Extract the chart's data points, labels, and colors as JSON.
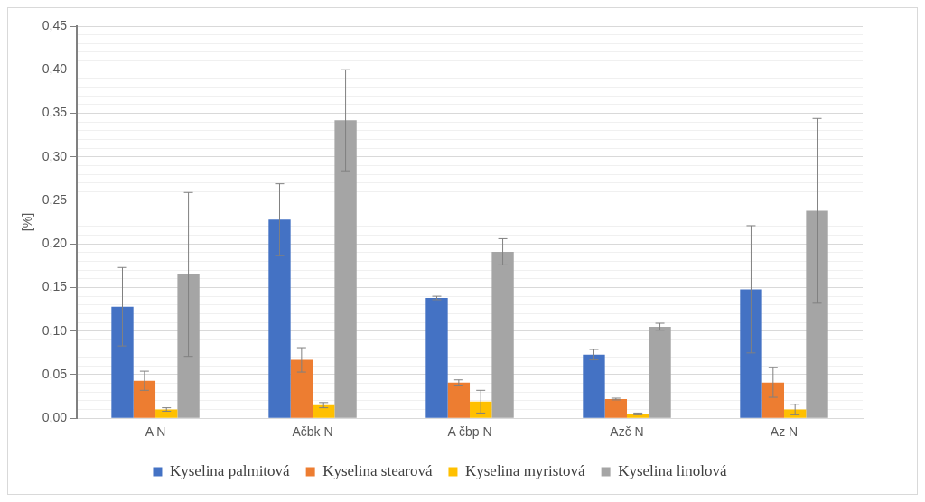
{
  "chart_data": {
    "type": "bar",
    "ylabel": "[%]",
    "categories": [
      "A N",
      "Ačbk N",
      "A čbp N",
      "Azč N",
      "Az N"
    ],
    "series": [
      {
        "name": "Kyselina palmitová",
        "color": "#4472c4",
        "values": [
          0.128,
          0.228,
          0.138,
          0.073,
          0.148
        ],
        "errors": [
          0.045,
          0.041,
          0.002,
          0.006,
          0.073
        ]
      },
      {
        "name": "Kyselina stearová",
        "color": "#ed7d31",
        "values": [
          0.043,
          0.067,
          0.041,
          0.022,
          0.041
        ],
        "errors": [
          0.011,
          0.014,
          0.003,
          0.001,
          0.017
        ]
      },
      {
        "name": "Kyselina myristová",
        "color": "#ffc000",
        "values": [
          0.01,
          0.015,
          0.019,
          0.005,
          0.01
        ],
        "errors": [
          0.002,
          0.003,
          0.013,
          0.001,
          0.006
        ]
      },
      {
        "name": "Kyselina linolová",
        "color": "#a5a5a5",
        "values": [
          0.165,
          0.342,
          0.191,
          0.105,
          0.238
        ],
        "errors": [
          0.094,
          0.058,
          0.015,
          0.004,
          0.106
        ]
      }
    ],
    "ylim": [
      0,
      0.45
    ],
    "yticks": [
      {
        "value": 0,
        "label": "0,00"
      },
      {
        "value": 0.01,
        "label": null
      },
      {
        "value": 0.02,
        "label": null
      },
      {
        "value": 0.03,
        "label": null
      },
      {
        "value": 0.04,
        "label": null
      },
      {
        "value": 0.05,
        "label": "0,05"
      },
      {
        "value": 0.06,
        "label": null
      },
      {
        "value": 0.07,
        "label": null
      },
      {
        "value": 0.08,
        "label": null
      },
      {
        "value": 0.09,
        "label": null
      },
      {
        "value": 0.1,
        "label": "0,10"
      },
      {
        "value": 0.11,
        "label": null
      },
      {
        "value": 0.12,
        "label": null
      },
      {
        "value": 0.13,
        "label": null
      },
      {
        "value": 0.14,
        "label": null
      },
      {
        "value": 0.15,
        "label": "0,15"
      },
      {
        "value": 0.16,
        "label": null
      },
      {
        "value": 0.17,
        "label": null
      },
      {
        "value": 0.18,
        "label": null
      },
      {
        "value": 0.19,
        "label": null
      },
      {
        "value": 0.2,
        "label": "0,20"
      },
      {
        "value": 0.21,
        "label": null
      },
      {
        "value": 0.22,
        "label": null
      },
      {
        "value": 0.23,
        "label": null
      },
      {
        "value": 0.24,
        "label": null
      },
      {
        "value": 0.25,
        "label": "0,25"
      },
      {
        "value": 0.26,
        "label": null
      },
      {
        "value": 0.27,
        "label": null
      },
      {
        "value": 0.28,
        "label": null
      },
      {
        "value": 0.29,
        "label": null
      },
      {
        "value": 0.3,
        "label": "0,30"
      },
      {
        "value": 0.31,
        "label": null
      },
      {
        "value": 0.32,
        "label": null
      },
      {
        "value": 0.33,
        "label": null
      },
      {
        "value": 0.34,
        "label": null
      },
      {
        "value": 0.35,
        "label": "0,35"
      },
      {
        "value": 0.36,
        "label": null
      },
      {
        "value": 0.37,
        "label": null
      },
      {
        "value": 0.38,
        "label": null
      },
      {
        "value": 0.39,
        "label": null
      },
      {
        "value": 0.4,
        "label": "0,40"
      },
      {
        "value": 0.41,
        "label": null
      },
      {
        "value": 0.42,
        "label": null
      },
      {
        "value": 0.43,
        "label": null
      },
      {
        "value": 0.44,
        "label": null
      },
      {
        "value": 0.45,
        "label": "0,45"
      }
    ],
    "grid": "y",
    "legend": "bottom"
  }
}
